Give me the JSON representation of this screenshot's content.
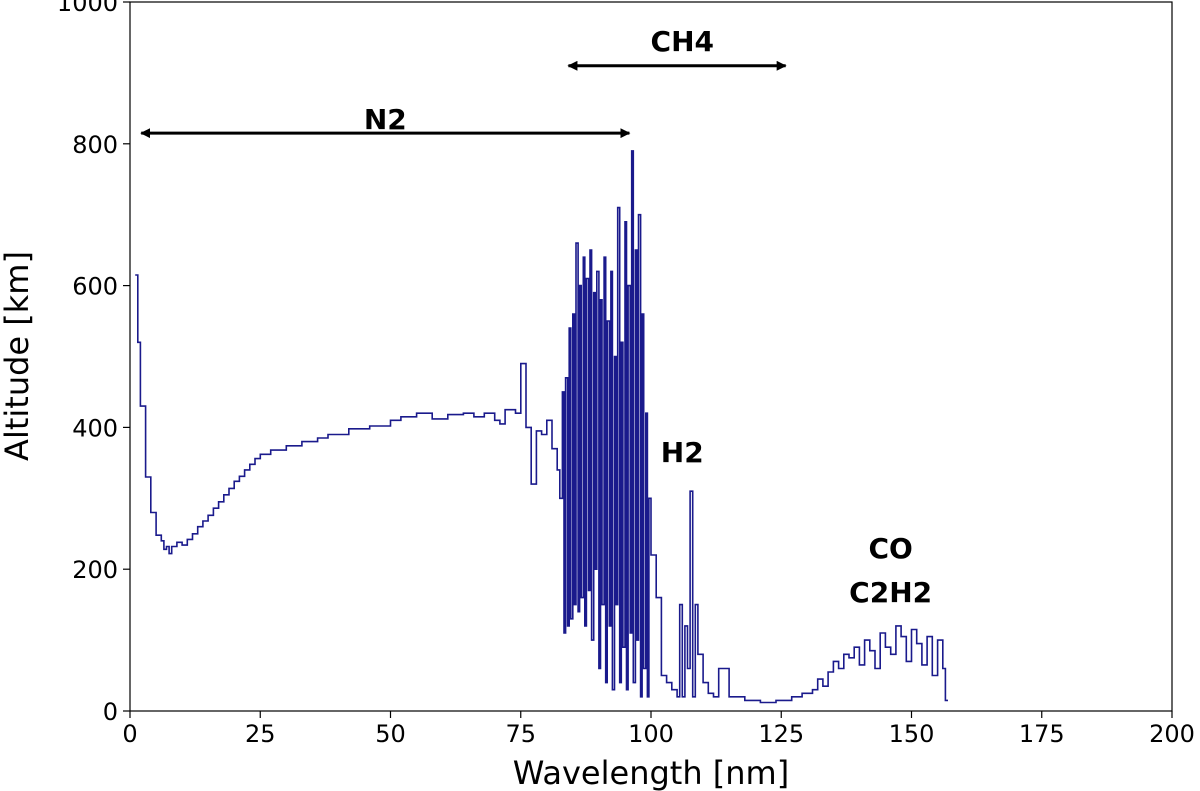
{
  "chart_data": {
    "type": "line",
    "xlabel": "Wavelength [nm]",
    "ylabel": "Altitude [km]",
    "xlim": [
      0,
      200
    ],
    "ylim": [
      0,
      1000
    ],
    "xticks": [
      "0",
      "25",
      "50",
      "75",
      "100",
      "125",
      "150",
      "175",
      "200"
    ],
    "yticks": [
      "0",
      "200",
      "400",
      "600",
      "800",
      "1000"
    ],
    "grid": false,
    "legend": "none",
    "line_color": "#1a1a8c",
    "annotations": [
      {
        "text": "N2",
        "x": 49,
        "y": 835,
        "arrow": [
          1,
          97,
          815
        ]
      },
      {
        "text": "CH4",
        "x": 106,
        "y": 945,
        "arrow": [
          83,
          127,
          910
        ]
      },
      {
        "text": "H2",
        "x": 106,
        "y": 365
      },
      {
        "text": "CO",
        "x": 146,
        "y": 230
      },
      {
        "text": "C2H2",
        "x": 146,
        "y": 168
      }
    ],
    "series": [
      {
        "points": [
          [
            1,
            615
          ],
          [
            1.5,
            520
          ],
          [
            2,
            430
          ],
          [
            3,
            330
          ],
          [
            4,
            280
          ],
          [
            5,
            248
          ],
          [
            6,
            240
          ],
          [
            6.5,
            228
          ],
          [
            7,
            232
          ],
          [
            7.5,
            222
          ],
          [
            8,
            232
          ],
          [
            9,
            238
          ],
          [
            10,
            234
          ],
          [
            11,
            242
          ],
          [
            12,
            250
          ],
          [
            13,
            260
          ],
          [
            14,
            268
          ],
          [
            15,
            276
          ],
          [
            16,
            286
          ],
          [
            17,
            295
          ],
          [
            18,
            305
          ],
          [
            19,
            314
          ],
          [
            20,
            324
          ],
          [
            21,
            331
          ],
          [
            22,
            340
          ],
          [
            23,
            348
          ],
          [
            24,
            356
          ],
          [
            25,
            362
          ],
          [
            27,
            368
          ],
          [
            30,
            374
          ],
          [
            33,
            380
          ],
          [
            36,
            385
          ],
          [
            38,
            390
          ],
          [
            42,
            398
          ],
          [
            46,
            402
          ],
          [
            50,
            410
          ],
          [
            52,
            415
          ],
          [
            55,
            420
          ],
          [
            58,
            412
          ],
          [
            61,
            418
          ],
          [
            64,
            420
          ],
          [
            66,
            415
          ],
          [
            68,
            420
          ],
          [
            70,
            410
          ],
          [
            71,
            405
          ],
          [
            72,
            425
          ],
          [
            74,
            420
          ],
          [
            75,
            490
          ],
          [
            76,
            400
          ],
          [
            77,
            320
          ],
          [
            78,
            395
          ],
          [
            79,
            390
          ],
          [
            80,
            410
          ],
          [
            81,
            370
          ],
          [
            82,
            340
          ],
          [
            82.5,
            300
          ],
          [
            83,
            450
          ],
          [
            83.3,
            110
          ],
          [
            83.6,
            470
          ],
          [
            84,
            120
          ],
          [
            84.3,
            540
          ],
          [
            84.6,
            130
          ],
          [
            85,
            560
          ],
          [
            85.3,
            150
          ],
          [
            85.6,
            660
          ],
          [
            86,
            140
          ],
          [
            86.3,
            600
          ],
          [
            86.6,
            160
          ],
          [
            87,
            640
          ],
          [
            87.3,
            120
          ],
          [
            87.6,
            610
          ],
          [
            88,
            170
          ],
          [
            88.3,
            650
          ],
          [
            88.6,
            100
          ],
          [
            89,
            590
          ],
          [
            89.3,
            200
          ],
          [
            89.6,
            620
          ],
          [
            90,
            60
          ],
          [
            90.3,
            580
          ],
          [
            90.6,
            150
          ],
          [
            91,
            640
          ],
          [
            91.3,
            40
          ],
          [
            91.6,
            550
          ],
          [
            92,
            120
          ],
          [
            92.3,
            620
          ],
          [
            92.6,
            30
          ],
          [
            93,
            500
          ],
          [
            93.3,
            150
          ],
          [
            93.6,
            710
          ],
          [
            94,
            40
          ],
          [
            94.3,
            520
          ],
          [
            94.6,
            90
          ],
          [
            95,
            690
          ],
          [
            95.3,
            30
          ],
          [
            95.6,
            600
          ],
          [
            96,
            110
          ],
          [
            96.3,
            790
          ],
          [
            96.6,
            40
          ],
          [
            97,
            650
          ],
          [
            97.3,
            100
          ],
          [
            97.6,
            700
          ],
          [
            98,
            20
          ],
          [
            98.3,
            560
          ],
          [
            98.6,
            60
          ],
          [
            99,
            420
          ],
          [
            99.3,
            20
          ],
          [
            99.6,
            300
          ],
          [
            100,
            220
          ],
          [
            101,
            160
          ],
          [
            102,
            50
          ],
          [
            103,
            40
          ],
          [
            104,
            30
          ],
          [
            105,
            20
          ],
          [
            105.5,
            150
          ],
          [
            106,
            20
          ],
          [
            106.5,
            120
          ],
          [
            107,
            60
          ],
          [
            107.5,
            310
          ],
          [
            108,
            20
          ],
          [
            108.5,
            150
          ],
          [
            109,
            80
          ],
          [
            110,
            40
          ],
          [
            111,
            25
          ],
          [
            112,
            20
          ],
          [
            113,
            60
          ],
          [
            115,
            20
          ],
          [
            118,
            15
          ],
          [
            121,
            12
          ],
          [
            124,
            15
          ],
          [
            127,
            20
          ],
          [
            129,
            25
          ],
          [
            131,
            30
          ],
          [
            132,
            45
          ],
          [
            133,
            35
          ],
          [
            134,
            55
          ],
          [
            135,
            70
          ],
          [
            136,
            60
          ],
          [
            137,
            80
          ],
          [
            138,
            75
          ],
          [
            139,
            90
          ],
          [
            140,
            65
          ],
          [
            141,
            100
          ],
          [
            142,
            85
          ],
          [
            143,
            60
          ],
          [
            144,
            110
          ],
          [
            145,
            90
          ],
          [
            146,
            80
          ],
          [
            147,
            120
          ],
          [
            148,
            105
          ],
          [
            149,
            70
          ],
          [
            150,
            115
          ],
          [
            151,
            95
          ],
          [
            152,
            65
          ],
          [
            153,
            105
          ],
          [
            154,
            50
          ],
          [
            155,
            100
          ],
          [
            156,
            60
          ],
          [
            156.5,
            15
          ],
          [
            157,
            15
          ]
        ]
      }
    ]
  }
}
